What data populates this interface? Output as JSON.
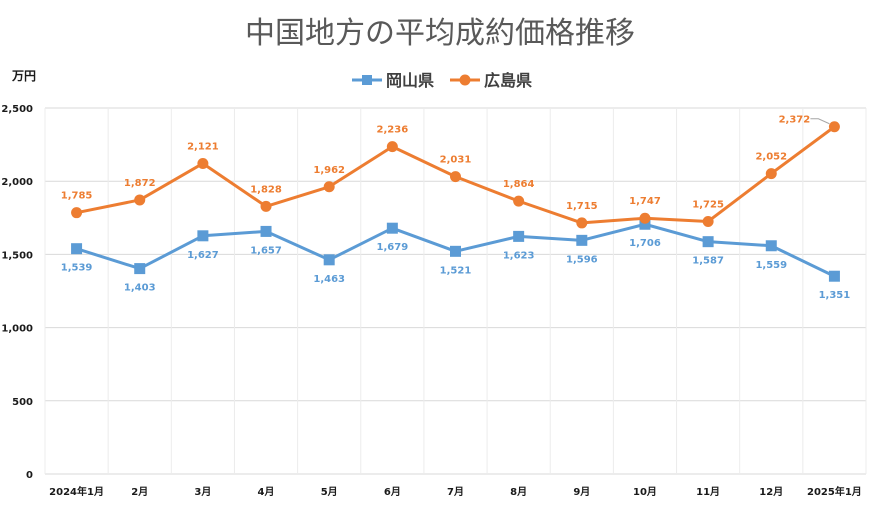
{
  "chart_data": {
    "type": "line",
    "title": "中国地方の平均成約価格推移",
    "ylabel": "万円",
    "xlabel": "",
    "ylim": [
      0,
      2500
    ],
    "yticks": [
      0,
      500,
      1000,
      1500,
      2000,
      2500
    ],
    "ytick_labels": [
      "0",
      "500",
      "1,000",
      "1,500",
      "2,000",
      "2,500"
    ],
    "categories": [
      "2024年1月",
      "2月",
      "3月",
      "4月",
      "5月",
      "6月",
      "7月",
      "8月",
      "9月",
      "10月",
      "11月",
      "12月",
      "2025年1月"
    ],
    "grid": true,
    "legend_position": "top-center",
    "series": [
      {
        "name": "岡山県",
        "color": "#5b9bd5",
        "marker": "square",
        "values": [
          1539,
          1403,
          1627,
          1657,
          1463,
          1679,
          1521,
          1623,
          1596,
          1706,
          1587,
          1559,
          1351
        ],
        "labels": [
          "1,539",
          "1,403",
          "1,627",
          "1,657",
          "1,463",
          "1,679",
          "1,521",
          "1,623",
          "1,596",
          "1,706",
          "1,587",
          "1,559",
          "1,351"
        ]
      },
      {
        "name": "広島県",
        "color": "#ed7d31",
        "marker": "circle",
        "values": [
          1785,
          1872,
          2121,
          1828,
          1962,
          2236,
          2031,
          1864,
          1715,
          1747,
          1725,
          2052,
          2372
        ],
        "labels": [
          "1,785",
          "1,872",
          "2,121",
          "1,828",
          "1,962",
          "2,236",
          "2,031",
          "1,864",
          "1,715",
          "1,747",
          "1,725",
          "2,052",
          "2,372"
        ]
      }
    ]
  }
}
